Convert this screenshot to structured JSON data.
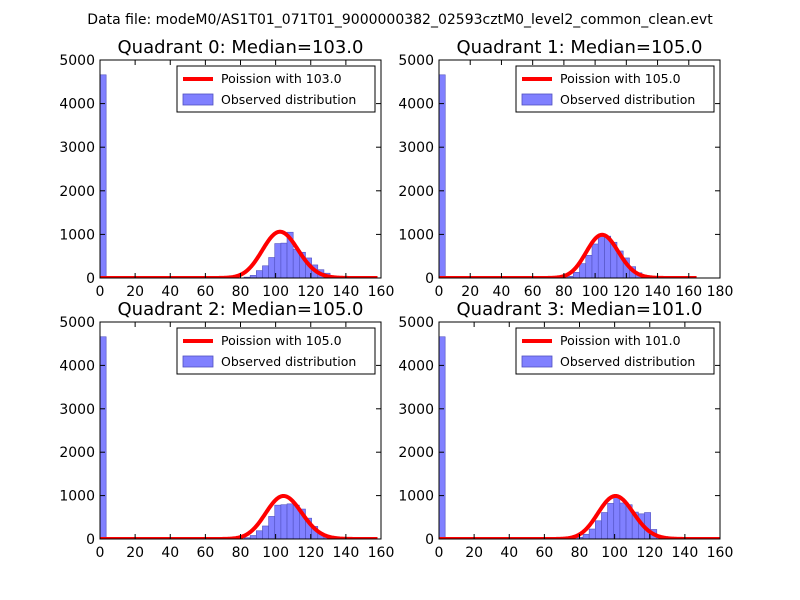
{
  "figure": {
    "suptitle": "Data file: modeM0/AS1T01_071T01_9000000382_02593cztM0_level2_common_clean.evt",
    "line_color": "#ff0000",
    "bar_fill": "#8080ff",
    "bar_edge": "#5050c0"
  },
  "chart_data": [
    {
      "type": "bar",
      "title": "Quadrant 0: Median=103.0",
      "xlim": [
        0,
        160
      ],
      "ylim": [
        0,
        5000
      ],
      "xticks": [
        0,
        20,
        40,
        60,
        80,
        100,
        120,
        140,
        160
      ],
      "yticks": [
        0,
        1000,
        2000,
        3000,
        4000,
        5000
      ],
      "legend_position": "top-right",
      "legend": [
        "Poission with 103.0",
        "Observed distribution"
      ],
      "poisson_mean": 103.0,
      "poisson_peak": 1060,
      "line_xrange": [
        0,
        158
      ],
      "bin_width": 3.5,
      "bins": [
        [
          0,
          4660
        ],
        [
          82,
          20
        ],
        [
          85.5,
          60
        ],
        [
          89,
          170
        ],
        [
          92.5,
          280
        ],
        [
          96,
          470
        ],
        [
          99.5,
          790
        ],
        [
          103,
          800
        ],
        [
          106.5,
          1050
        ],
        [
          110,
          660
        ],
        [
          113.5,
          590
        ],
        [
          117,
          460
        ],
        [
          120.5,
          300
        ],
        [
          124,
          190
        ],
        [
          127.5,
          110
        ],
        [
          131,
          50
        ],
        [
          134.5,
          20
        ]
      ]
    },
    {
      "type": "bar",
      "title": "Quadrant 1: Median=105.0",
      "xlim": [
        0,
        180
      ],
      "ylim": [
        0,
        5000
      ],
      "xticks": [
        0,
        20,
        40,
        60,
        80,
        100,
        120,
        140,
        160,
        180
      ],
      "yticks": [
        0,
        1000,
        2000,
        3000,
        4000,
        5000
      ],
      "legend_position": "top-right",
      "legend": [
        "Poission with 105.0",
        "Observed distribution"
      ],
      "poisson_mean": 105.0,
      "poisson_peak": 990,
      "line_xrange": [
        0,
        165
      ],
      "bin_width": 4,
      "bins": [
        [
          0,
          4660
        ],
        [
          82,
          40
        ],
        [
          86,
          130
        ],
        [
          90,
          330
        ],
        [
          94,
          520
        ],
        [
          98,
          780
        ],
        [
          102,
          980
        ],
        [
          106,
          960
        ],
        [
          110,
          820
        ],
        [
          114,
          620
        ],
        [
          118,
          460
        ],
        [
          122,
          260
        ],
        [
          126,
          120
        ],
        [
          130,
          40
        ]
      ]
    },
    {
      "type": "bar",
      "title": "Quadrant 2: Median=105.0",
      "xlim": [
        0,
        160
      ],
      "ylim": [
        0,
        5000
      ],
      "xticks": [
        0,
        20,
        40,
        60,
        80,
        100,
        120,
        140,
        160
      ],
      "yticks": [
        0,
        1000,
        2000,
        3000,
        4000,
        5000
      ],
      "legend_position": "top-right",
      "legend": [
        "Poission with 105.0",
        "Observed distribution"
      ],
      "poisson_mean": 105.0,
      "poisson_peak": 990,
      "line_xrange": [
        0,
        158
      ],
      "bin_width": 3.5,
      "bins": [
        [
          0,
          4660
        ],
        [
          82,
          30
        ],
        [
          85.5,
          80
        ],
        [
          89,
          190
        ],
        [
          92.5,
          300
        ],
        [
          96,
          520
        ],
        [
          99.5,
          780
        ],
        [
          103,
          790
        ],
        [
          106.5,
          810
        ],
        [
          110,
          780
        ],
        [
          113.5,
          690
        ],
        [
          117,
          480
        ],
        [
          120.5,
          290
        ],
        [
          124,
          120
        ],
        [
          127.5,
          50
        ],
        [
          131,
          20
        ]
      ]
    },
    {
      "type": "bar",
      "title": "Quadrant 3: Median=101.0",
      "xlim": [
        0,
        160
      ],
      "ylim": [
        0,
        5000
      ],
      "xticks": [
        0,
        20,
        40,
        60,
        80,
        100,
        120,
        140,
        160
      ],
      "yticks": [
        0,
        1000,
        2000,
        3000,
        4000,
        5000
      ],
      "legend_position": "top-right",
      "legend": [
        "Poission with 101.0",
        "Observed distribution"
      ],
      "poisson_mean": 101.0,
      "poisson_peak": 990,
      "line_xrange": [
        0,
        160
      ],
      "bin_width": 3.5,
      "bins": [
        [
          0,
          4660
        ],
        [
          78.5,
          40
        ],
        [
          82,
          110
        ],
        [
          85.5,
          230
        ],
        [
          89,
          420
        ],
        [
          92.5,
          610
        ],
        [
          96,
          820
        ],
        [
          99.5,
          960
        ],
        [
          103,
          830
        ],
        [
          106.5,
          790
        ],
        [
          110,
          620
        ],
        [
          113.5,
          580
        ],
        [
          117,
          610
        ],
        [
          120.5,
          220
        ],
        [
          124,
          60
        ],
        [
          127.5,
          20
        ]
      ]
    }
  ]
}
